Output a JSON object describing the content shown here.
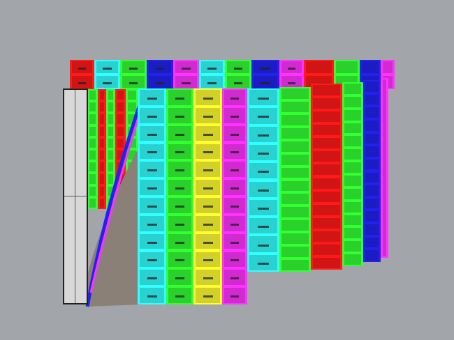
{
  "viewport": {
    "background": "#a2a6aa"
  },
  "palette": {
    "red": "#ff1a1a",
    "cyan": "#33ffff",
    "green": "#33ff33",
    "blue": "#2222ee",
    "magenta": "#ff33ff",
    "yellow": "#ffff33",
    "taupe": "#8a8078",
    "grey": "#d8d8d8"
  },
  "back_row": [
    "red",
    "cyan",
    "green",
    "blue",
    "magenta",
    "cyan",
    "green",
    "blue",
    "magenta",
    "red",
    "green",
    "blue",
    "magenta"
  ],
  "left_strips": [
    "green",
    "red",
    "green",
    "red",
    "green"
  ],
  "front_columns": [
    "cyan",
    "green",
    "yellow",
    "magenta",
    "cyan",
    "green",
    "red",
    "green",
    "blue",
    "magenta"
  ]
}
